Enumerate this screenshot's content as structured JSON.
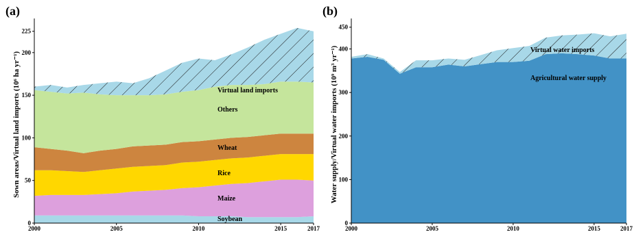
{
  "panels": [
    {
      "label": "(a)",
      "ylabel": "Sown areas/Virtual land imports (10⁶ ha yr⁻¹)"
    },
    {
      "label": "(b)",
      "ylabel": "Water supply/Virtual water imports (10⁹ m³ yr⁻¹)"
    }
  ],
  "colors": {
    "soybean": "#a8d8e8",
    "maize": "#dda0dd",
    "rice": "#ffd700",
    "wheat": "#cd853f",
    "others": "#c5e59c",
    "virtual_land": "#a8d8e8",
    "agricultural_water": "#4292c6",
    "virtual_water": "#a8d8e8",
    "hatch": "#000000"
  },
  "chart_data": [
    {
      "type": "area",
      "stacked": true,
      "x": [
        2000,
        2001,
        2002,
        2003,
        2004,
        2005,
        2006,
        2007,
        2008,
        2009,
        2010,
        2011,
        2012,
        2013,
        2014,
        2015,
        2016,
        2017
      ],
      "xticks": [
        2000,
        2005,
        2010,
        2015,
        2017
      ],
      "yticks": [
        0,
        50,
        100,
        150,
        200,
        225
      ],
      "ylim": [
        0,
        240
      ],
      "xlim": [
        2000,
        2017
      ],
      "series": [
        {
          "name": "Soybean",
          "values": [
            9,
            9,
            9,
            9,
            9,
            9,
            9,
            9,
            9,
            9,
            8,
            8,
            8,
            7,
            7,
            7,
            7,
            8
          ]
        },
        {
          "name": "Maize",
          "values": [
            23,
            24,
            24,
            24,
            25,
            26,
            28,
            29,
            30,
            32,
            34,
            36,
            38,
            40,
            42,
            44,
            44,
            42
          ]
        },
        {
          "name": "Rice",
          "values": [
            30,
            29,
            28,
            27,
            28,
            29,
            29,
            29,
            29,
            30,
            30,
            30,
            30,
            30,
            30,
            30,
            30,
            31
          ]
        },
        {
          "name": "Wheat",
          "values": [
            27,
            25,
            24,
            22,
            23,
            23,
            24,
            24,
            24,
            24,
            24,
            24,
            24,
            24,
            24,
            24,
            24,
            24
          ]
        },
        {
          "name": "Others",
          "values": [
            67,
            67,
            67,
            71,
            66,
            63,
            60,
            59,
            59,
            59,
            60,
            62,
            62,
            61,
            60,
            61,
            61,
            60
          ]
        },
        {
          "name": "Virtual land imports",
          "hatched": true,
          "values": [
            4,
            8,
            7,
            9,
            13,
            16,
            14,
            20,
            28,
            34,
            37,
            31,
            36,
            44,
            52,
            56,
            63,
            60
          ]
        }
      ],
      "annotations": [
        "Virtual land imports",
        "Others",
        "Wheat",
        "Rice",
        "Maize",
        "Soybean"
      ]
    },
    {
      "type": "area",
      "stacked": true,
      "x": [
        2000,
        2001,
        2002,
        2003,
        2004,
        2005,
        2006,
        2007,
        2008,
        2009,
        2010,
        2011,
        2012,
        2013,
        2014,
        2015,
        2016,
        2017
      ],
      "xticks": [
        2000,
        2005,
        2010,
        2015,
        2017
      ],
      "yticks": [
        0,
        100,
        200,
        300,
        400,
        450
      ],
      "ylim": [
        0,
        470
      ],
      "xlim": [
        2000,
        2017
      ],
      "series": [
        {
          "name": "Agricultural water supply",
          "values": [
            378,
            382,
            375,
            343,
            358,
            358,
            364,
            360,
            365,
            370,
            370,
            373,
            388,
            390,
            388,
            385,
            378,
            378
          ]
        },
        {
          "name": "Virtual water imports",
          "hatched": true,
          "values": [
            4,
            6,
            3,
            4,
            16,
            16,
            14,
            15,
            21,
            27,
            32,
            34,
            38,
            41,
            45,
            51,
            51,
            57
          ]
        }
      ],
      "annotations": [
        "Virtual water imports",
        "Agricultural water supply"
      ]
    }
  ]
}
